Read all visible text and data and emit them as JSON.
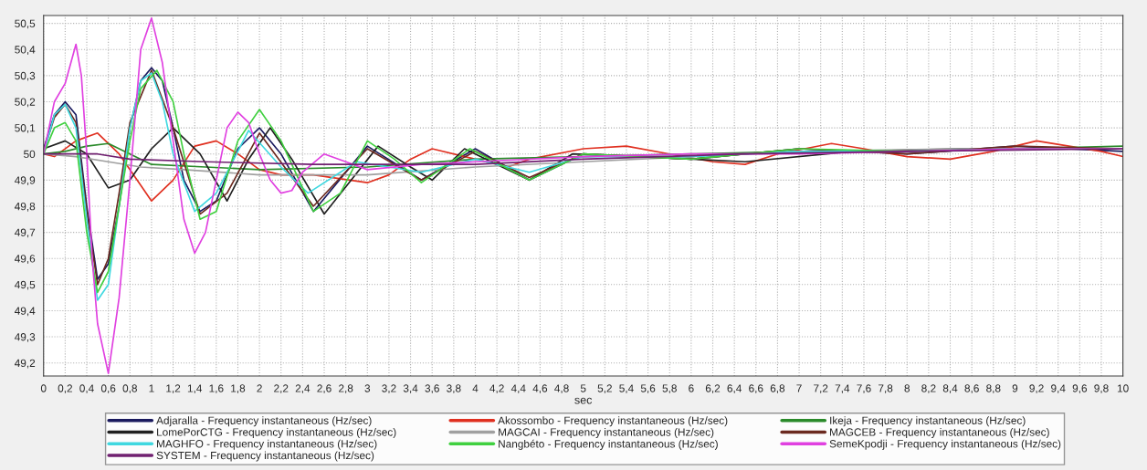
{
  "chart_data": {
    "type": "line",
    "xlabel": "sec",
    "xlim": [
      0,
      10
    ],
    "ylim": [
      49.15,
      50.53
    ],
    "xticks": [
      0,
      {
        "value": 0.2,
        "label": "0,2"
      },
      {
        "value": 0.4,
        "label": "0,4"
      },
      {
        "value": 0.6,
        "label": "0,6"
      },
      {
        "value": 0.8,
        "label": "0,8"
      },
      1,
      {
        "value": 1.2,
        "label": "1,2"
      },
      {
        "value": 1.4,
        "label": "1,4"
      },
      {
        "value": 1.6,
        "label": "1,6"
      },
      {
        "value": 1.8,
        "label": "1,8"
      },
      2,
      {
        "value": 2.2,
        "label": "2,2"
      },
      {
        "value": 2.4,
        "label": "2,4"
      },
      {
        "value": 2.6,
        "label": "2,6"
      },
      {
        "value": 2.8,
        "label": "2,8"
      },
      3,
      {
        "value": 3.2,
        "label": "3,2"
      },
      {
        "value": 3.4,
        "label": "3,4"
      },
      {
        "value": 3.6,
        "label": "3,6"
      },
      {
        "value": 3.8,
        "label": "3,8"
      },
      4,
      {
        "value": 4.2,
        "label": "4,2"
      },
      {
        "value": 4.4,
        "label": "4,4"
      },
      {
        "value": 4.6,
        "label": "4,6"
      },
      {
        "value": 4.8,
        "label": "4,8"
      },
      5,
      {
        "value": 5.2,
        "label": "5,2"
      },
      {
        "value": 5.4,
        "label": "5,4"
      },
      {
        "value": 5.6,
        "label": "5,6"
      },
      {
        "value": 5.8,
        "label": "5,8"
      },
      6,
      {
        "value": 6.2,
        "label": "6,2"
      },
      {
        "value": 6.4,
        "label": "6,4"
      },
      {
        "value": 6.6,
        "label": "6,6"
      },
      {
        "value": 6.8,
        "label": "6,8"
      },
      7,
      {
        "value": 7.2,
        "label": "7,2"
      },
      {
        "value": 7.4,
        "label": "7,4"
      },
      {
        "value": 7.6,
        "label": "7,6"
      },
      {
        "value": 7.8,
        "label": "7,8"
      },
      8,
      {
        "value": 8.2,
        "label": "8,2"
      },
      {
        "value": 8.4,
        "label": "8,4"
      },
      {
        "value": 8.6,
        "label": "8,6"
      },
      {
        "value": 8.8,
        "label": "8,8"
      },
      9,
      {
        "value": 9.2,
        "label": "9,2"
      },
      {
        "value": 9.4,
        "label": "9,4"
      },
      {
        "value": 9.6,
        "label": "9,6"
      },
      {
        "value": 9.8,
        "label": "9,8"
      },
      10
    ],
    "yticks": [
      {
        "value": 49.2,
        "label": "49,2"
      },
      {
        "value": 49.3,
        "label": "49,3"
      },
      {
        "value": 49.4,
        "label": "49,4"
      },
      {
        "value": 49.5,
        "label": "49,5"
      },
      {
        "value": 49.6,
        "label": "49,6"
      },
      {
        "value": 49.7,
        "label": "49,7"
      },
      {
        "value": 49.8,
        "label": "49,8"
      },
      {
        "value": 49.9,
        "label": "49,9"
      },
      50,
      {
        "value": 50.1,
        "label": "50,1"
      },
      {
        "value": 50.2,
        "label": "50,2"
      },
      {
        "value": 50.3,
        "label": "50,3"
      },
      {
        "value": 50.4,
        "label": "50,4"
      },
      {
        "value": 50.5,
        "label": "50,5"
      }
    ],
    "grid": true,
    "legend": "bottom",
    "line_style": "solid",
    "marker": "none",
    "series": [
      {
        "name": "Adjaralla - Frequency instantaneous (Hz/sec)",
        "color": "#1a1a5e",
        "x": [
          0,
          0.1,
          0.2,
          0.3,
          0.4,
          0.5,
          0.6,
          0.7,
          0.8,
          0.9,
          1.0,
          1.1,
          1.2,
          1.3,
          1.45,
          1.6,
          1.8,
          2.0,
          2.2,
          2.5,
          3.0,
          3.5,
          4.0,
          4.5,
          5.0,
          6.0,
          7.0,
          8.0,
          9.0,
          10
        ],
        "values": [
          50.02,
          50.15,
          50.2,
          50.15,
          49.8,
          49.52,
          49.58,
          49.8,
          50.1,
          50.28,
          50.33,
          50.28,
          50.1,
          49.9,
          49.78,
          49.82,
          50.02,
          50.1,
          50.0,
          49.78,
          50.03,
          49.9,
          50.02,
          49.9,
          50.0,
          49.98,
          50.02,
          50.0,
          50.03,
          50.01
        ]
      },
      {
        "name": "Akossombo - Frequency instantaneous (Hz/sec)",
        "color": "#e03020",
        "x": [
          0,
          0.1,
          0.3,
          0.5,
          0.7,
          0.9,
          1.0,
          1.2,
          1.4,
          1.6,
          1.8,
          2.0,
          2.2,
          2.5,
          3.0,
          3.2,
          3.4,
          3.6,
          4.0,
          4.3,
          4.5,
          5.0,
          5.4,
          5.8,
          6.2,
          6.5,
          6.8,
          7.3,
          7.6,
          8.0,
          8.4,
          8.8,
          9.2,
          9.5,
          9.8,
          10
        ],
        "values": [
          50.0,
          49.99,
          50.05,
          50.08,
          50.0,
          49.88,
          49.82,
          49.9,
          50.03,
          50.05,
          50.0,
          49.94,
          49.92,
          49.92,
          49.89,
          49.92,
          49.98,
          50.02,
          49.98,
          49.95,
          49.98,
          50.02,
          50.03,
          50.0,
          49.97,
          49.96,
          50.0,
          50.04,
          50.02,
          49.99,
          49.98,
          50.01,
          50.05,
          50.03,
          50.01,
          49.99
        ]
      },
      {
        "name": "Ikeja - Frequency instantaneous (Hz/sec)",
        "color": "#2a8a2a",
        "x": [
          0,
          0.2,
          0.4,
          0.6,
          0.8,
          1.0,
          1.5,
          2.0,
          3.0,
          4.0,
          5.0,
          6.0,
          7.0,
          8.0,
          9.0,
          10
        ],
        "values": [
          50.0,
          50.01,
          50.03,
          50.04,
          50.0,
          49.96,
          49.95,
          49.94,
          49.95,
          49.98,
          49.99,
          50.0,
          50.01,
          50.01,
          50.02,
          50.03
        ]
      },
      {
        "name": "LomePorCTG - Frequency instantaneous (Hz/sec)",
        "color": "#202020",
        "x": [
          0,
          0.2,
          0.4,
          0.6,
          0.8,
          1.0,
          1.2,
          1.45,
          1.7,
          1.9,
          2.1,
          2.3,
          2.6,
          2.85,
          3.1,
          3.4,
          3.6,
          3.9,
          4.2,
          4.5,
          4.9,
          5.5,
          6.5,
          7.5,
          8.5,
          10
        ],
        "values": [
          50.02,
          50.05,
          50.0,
          49.87,
          49.9,
          50.02,
          50.1,
          50.0,
          49.82,
          49.98,
          50.1,
          49.98,
          49.77,
          49.9,
          50.03,
          49.95,
          49.9,
          50.02,
          49.96,
          49.9,
          50.0,
          49.99,
          49.97,
          50.01,
          50.02,
          50.02
        ]
      },
      {
        "name": "MAGCAI - Frequency instantaneous (Hz/sec)",
        "color": "#a0a0a0",
        "x": [
          0,
          0.3,
          0.6,
          0.9,
          1.3,
          2.0,
          3.0,
          4.0,
          5.0,
          6.0,
          7.0,
          8.5,
          10
        ],
        "values": [
          50.0,
          49.99,
          49.97,
          49.95,
          49.94,
          49.92,
          49.92,
          49.95,
          49.97,
          49.99,
          50.01,
          50.02,
          50.02
        ]
      },
      {
        "name": "MAGCEB - Frequency instantaneous (Hz/sec)",
        "color": "#6b2a20",
        "x": [
          0,
          0.1,
          0.2,
          0.3,
          0.4,
          0.5,
          0.6,
          0.7,
          0.8,
          1.0,
          1.2,
          1.45,
          1.7,
          2.0,
          2.5,
          3.0,
          3.5,
          4.0,
          4.5,
          5.0,
          6.0,
          7.0,
          8.0,
          9.0,
          10
        ],
        "values": [
          50.01,
          50.14,
          50.19,
          50.12,
          49.78,
          49.5,
          49.6,
          49.85,
          50.12,
          50.32,
          50.1,
          49.77,
          49.85,
          50.08,
          49.8,
          50.02,
          49.9,
          50.01,
          49.91,
          50.0,
          49.98,
          50.02,
          50.0,
          50.03,
          50.02
        ]
      },
      {
        "name": "MAGHFO - Frequency instantaneous (Hz/sec)",
        "color": "#40d8e0",
        "x": [
          0,
          0.1,
          0.2,
          0.3,
          0.4,
          0.5,
          0.6,
          0.7,
          0.8,
          0.9,
          1.0,
          1.1,
          1.2,
          1.4,
          1.6,
          1.9,
          2.2,
          2.45,
          2.9,
          3.5,
          4.0,
          4.5,
          5.0,
          6.0,
          7.0,
          8.0,
          9.0,
          10
        ],
        "values": [
          50.0,
          50.15,
          50.19,
          50.1,
          49.75,
          49.44,
          49.5,
          49.8,
          50.1,
          50.28,
          50.31,
          50.2,
          50.0,
          49.78,
          49.85,
          50.09,
          49.95,
          49.85,
          49.97,
          49.93,
          49.98,
          49.93,
          49.99,
          49.99,
          50.01,
          50.01,
          50.02,
          50.02
        ]
      },
      {
        "name": "Nangbéto - Frequency instantaneous (Hz/sec)",
        "color": "#40d040",
        "x": [
          0,
          0.1,
          0.2,
          0.3,
          0.4,
          0.5,
          0.6,
          0.7,
          0.8,
          0.9,
          1.05,
          1.2,
          1.3,
          1.45,
          1.6,
          1.8,
          2.0,
          2.2,
          2.5,
          2.75,
          3.0,
          3.25,
          3.5,
          3.95,
          4.5,
          5.0,
          6.0,
          7.0,
          8.0,
          9.0,
          10
        ],
        "values": [
          50.0,
          50.1,
          50.12,
          50.05,
          49.7,
          49.47,
          49.55,
          49.8,
          50.05,
          50.25,
          50.32,
          50.2,
          50.0,
          49.75,
          49.78,
          50.05,
          50.17,
          50.05,
          49.78,
          49.85,
          50.05,
          49.98,
          49.89,
          50.02,
          49.9,
          50.0,
          49.98,
          50.02,
          50.01,
          50.02,
          50.02
        ]
      },
      {
        "name": "SemeKpodji - Frequency instantaneous (Hz/sec)",
        "color": "#e040e0",
        "x": [
          0,
          0.1,
          0.2,
          0.3,
          0.35,
          0.4,
          0.45,
          0.5,
          0.6,
          0.7,
          0.8,
          0.9,
          1.0,
          1.1,
          1.2,
          1.3,
          1.4,
          1.5,
          1.6,
          1.7,
          1.8,
          1.9,
          2.0,
          2.1,
          2.2,
          2.3,
          2.4,
          2.6,
          2.8,
          3.0,
          3.5,
          4.0,
          5.0,
          6.0,
          7.0,
          8.0,
          9.0,
          10
        ],
        "values": [
          50.0,
          50.2,
          50.27,
          50.42,
          50.3,
          50.0,
          49.6,
          49.35,
          49.16,
          49.45,
          49.9,
          50.4,
          50.52,
          50.35,
          50.05,
          49.75,
          49.62,
          49.7,
          49.9,
          50.1,
          50.16,
          50.12,
          50.0,
          49.9,
          49.85,
          49.86,
          49.93,
          50.0,
          49.97,
          49.94,
          49.96,
          49.97,
          49.99,
          50.0,
          50.0,
          50.01,
          50.02,
          50.02
        ]
      },
      {
        "name": "SYSTEM - Frequency instantaneous (Hz/sec)",
        "color": "#702070",
        "x": [
          0,
          0.5,
          0.8,
          1.5,
          2.5,
          4.0,
          5.0,
          6.5,
          8.0,
          10
        ],
        "values": [
          50.0,
          50.0,
          49.98,
          49.97,
          49.96,
          49.96,
          49.98,
          50.0,
          50.01,
          50.02
        ]
      }
    ]
  }
}
